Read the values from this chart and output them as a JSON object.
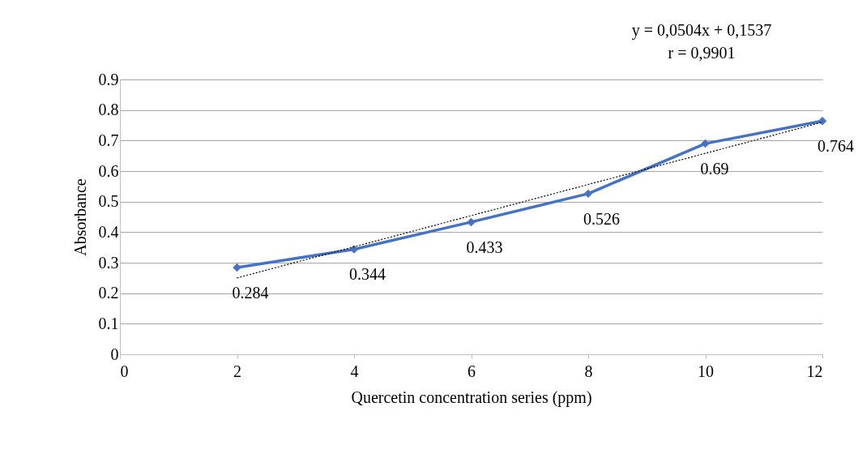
{
  "chart_data": {
    "type": "line",
    "xlabel": "Quercetin concentration series (ppm)",
    "ylabel": "Absorbance",
    "x": [
      2,
      4,
      6,
      8,
      10,
      12
    ],
    "series": [
      {
        "color": "#4472c4",
        "values": [
          0.284,
          0.344,
          0.433,
          0.526,
          0.69,
          0.764
        ],
        "value_labels": [
          "0.284",
          "0.344",
          "0.433",
          "0.526",
          "0.69",
          "0.764"
        ],
        "marker": "diamond",
        "line_style": "solid"
      },
      {
        "type": "line",
        "color": "#000000",
        "x": [
          2,
          12
        ],
        "values": [
          0.25,
          0.76
        ],
        "marker": "none",
        "line_style": "dotted"
      }
    ],
    "annotations": [
      "y = 0,0504x + 0,1537",
      "r = 0,9901"
    ],
    "xlim": [
      0,
      12
    ],
    "xticks": [
      0,
      2,
      4,
      6,
      8,
      10,
      12
    ],
    "ylim": [
      0,
      0.9
    ],
    "yticks": [
      0,
      0.1,
      0.2,
      0.3,
      0.4,
      0.5,
      0.6,
      0.7,
      0.8,
      0.9
    ],
    "grid": "y"
  }
}
